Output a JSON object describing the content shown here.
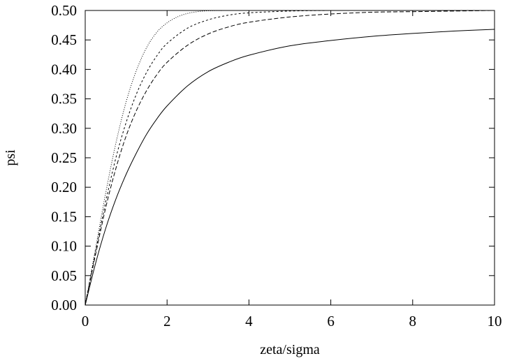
{
  "chart_data": {
    "type": "line",
    "title": "",
    "xlabel": "zeta/sigma",
    "ylabel": "psi",
    "xlim": [
      0,
      10
    ],
    "ylim": [
      0,
      0.5
    ],
    "grid": false,
    "legend": "none",
    "x_ticks": [
      0,
      2,
      4,
      6,
      8,
      10
    ],
    "x_tick_labels": [
      "0",
      "2",
      "4",
      "6",
      "8",
      "10"
    ],
    "y_ticks": [
      0,
      0.05,
      0.1,
      0.15,
      0.2,
      0.25,
      0.3,
      0.35,
      0.4,
      0.45,
      0.5
    ],
    "y_tick_labels": [
      "0.00",
      "0.05",
      "0.10",
      "0.15",
      "0.20",
      "0.25",
      "0.30",
      "0.35",
      "0.40",
      "0.45",
      "0.50"
    ],
    "series": [
      {
        "line_style": "solid",
        "x": [
          0,
          0.25,
          0.5,
          0.75,
          1,
          1.25,
          1.5,
          1.75,
          2,
          2.5,
          3,
          3.5,
          4,
          5,
          6,
          7,
          8,
          9,
          10
        ],
        "y": [
          0,
          0.07,
          0.13,
          0.18,
          0.222,
          0.258,
          0.29,
          0.316,
          0.338,
          0.372,
          0.396,
          0.412,
          0.424,
          0.44,
          0.449,
          0.456,
          0.461,
          0.465,
          0.468
        ]
      },
      {
        "line_style": "dashed",
        "x": [
          0,
          0.25,
          0.5,
          0.75,
          1,
          1.25,
          1.5,
          1.75,
          2,
          2.5,
          3,
          3.5,
          4,
          5,
          6,
          7,
          8,
          9,
          10
        ],
        "y": [
          0,
          0.085,
          0.165,
          0.232,
          0.287,
          0.33,
          0.364,
          0.391,
          0.412,
          0.441,
          0.46,
          0.472,
          0.48,
          0.489,
          0.494,
          0.497,
          0.498,
          0.499,
          0.5
        ]
      },
      {
        "line_style": "short-dashed",
        "x": [
          0,
          0.25,
          0.5,
          0.75,
          1,
          1.25,
          1.5,
          1.75,
          2,
          2.5,
          3,
          3.5,
          4,
          5,
          6,
          7,
          8,
          9,
          10
        ],
        "y": [
          0,
          0.09,
          0.175,
          0.25,
          0.31,
          0.358,
          0.395,
          0.423,
          0.444,
          0.47,
          0.484,
          0.492,
          0.496,
          0.499,
          0.5,
          0.5,
          0.5,
          0.5,
          0.5
        ]
      },
      {
        "line_style": "dotted",
        "x": [
          0,
          0.25,
          0.5,
          0.75,
          1,
          1.25,
          1.5,
          1.75,
          2,
          2.25,
          2.5,
          2.75,
          3,
          3.5,
          4,
          5,
          6,
          7,
          8,
          9,
          10
        ],
        "y": [
          0,
          0.095,
          0.19,
          0.275,
          0.345,
          0.398,
          0.437,
          0.463,
          0.479,
          0.489,
          0.495,
          0.498,
          0.4995,
          0.5,
          0.5,
          0.5,
          0.5,
          0.5,
          0.5,
          0.5,
          0.5
        ]
      }
    ]
  }
}
